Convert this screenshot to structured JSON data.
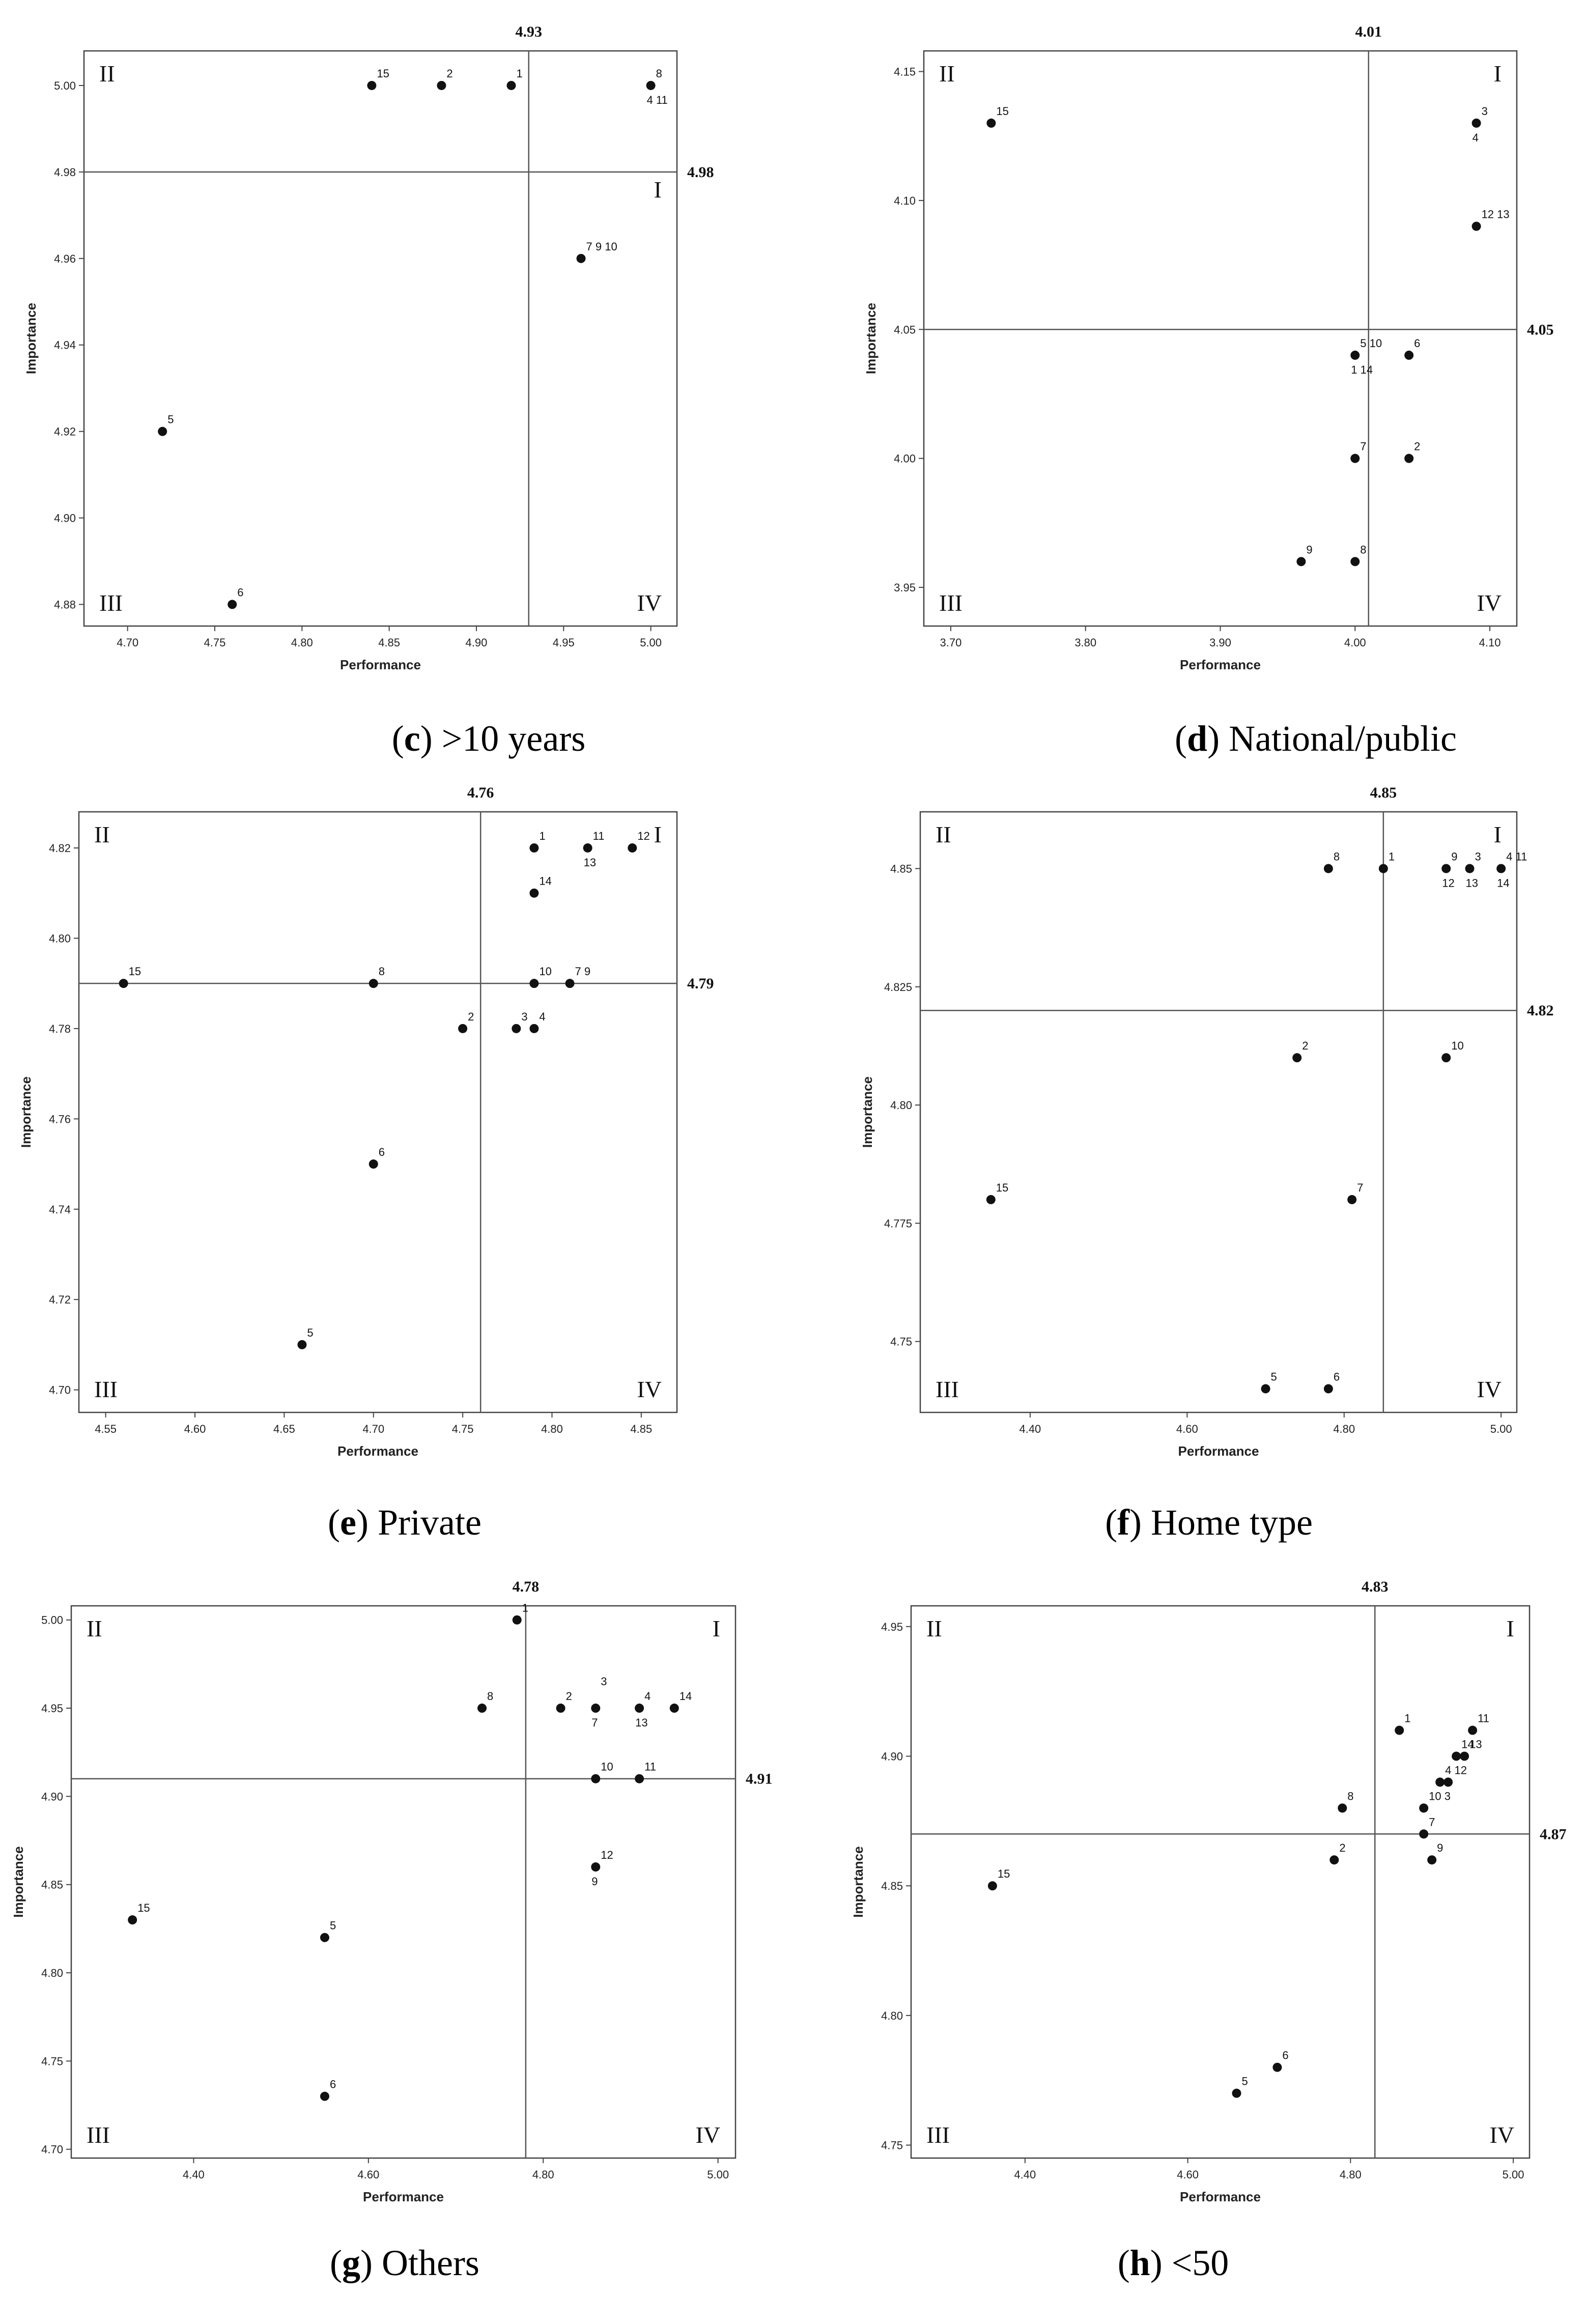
{
  "figure": {
    "quadrant_labels": [
      "I",
      "II",
      "III",
      "IV"
    ]
  },
  "chart_data": [
    {
      "type": "scatter",
      "caption_letter": "c",
      "caption_text": " >10 years",
      "xlabel": "Performance",
      "ylabel": "Importance",
      "xlim": [
        4.675,
        5.015
      ],
      "ylim": [
        4.875,
        5.008
      ],
      "xticks": [
        "4.70",
        "4.75",
        "4.80",
        "4.85",
        "4.90",
        "4.95",
        "5.00"
      ],
      "yticks": [
        "4.88",
        "4.90",
        "4.92",
        "4.94",
        "4.96",
        "4.98",
        "5.00"
      ],
      "vline": 4.93,
      "vline_label": "4.93",
      "hline": 4.98,
      "hline_label": "4.98",
      "points": [
        {
          "x": 4.84,
          "y": 5.0,
          "label": "15"
        },
        {
          "x": 4.88,
          "y": 5.0,
          "label": "2"
        },
        {
          "x": 4.92,
          "y": 5.0,
          "label": "1"
        },
        {
          "x": 5.0,
          "y": 5.0,
          "label": "8",
          "label2": "4  11"
        },
        {
          "x": 4.96,
          "y": 4.96,
          "label": "7  9 10"
        },
        {
          "x": 4.72,
          "y": 4.92,
          "label": "5"
        },
        {
          "x": 4.76,
          "y": 4.88,
          "label": "6"
        }
      ]
    },
    {
      "type": "scatter",
      "caption_letter": "d",
      "caption_text": " National/public",
      "xlabel": "Performance",
      "ylabel": "Importance",
      "xlim": [
        3.68,
        4.12
      ],
      "ylim": [
        3.935,
        4.158
      ],
      "xticks": [
        "3.70",
        "3.80",
        "3.90",
        "4.00",
        "4.10"
      ],
      "yticks": [
        "3.95",
        "4.00",
        "4.05",
        "4.10",
        "4.15"
      ],
      "vline": 4.01,
      "vline_label": "4.01",
      "hline": 4.05,
      "hline_label": "4.05",
      "points": [
        {
          "x": 3.73,
          "y": 4.13,
          "label": "15"
        },
        {
          "x": 4.09,
          "y": 4.13,
          "label": "3",
          "label2": "4"
        },
        {
          "x": 4.09,
          "y": 4.09,
          "label": "12 13"
        },
        {
          "x": 4.0,
          "y": 4.04,
          "label": "5  10",
          "label2": "1  14"
        },
        {
          "x": 4.04,
          "y": 4.04,
          "label": "6"
        },
        {
          "x": 4.0,
          "y": 4.0,
          "label": "7"
        },
        {
          "x": 4.04,
          "y": 4.0,
          "label": "2"
        },
        {
          "x": 3.96,
          "y": 3.96,
          "label": "9"
        },
        {
          "x": 4.0,
          "y": 3.96,
          "label": "8"
        }
      ]
    },
    {
      "type": "scatter",
      "caption_letter": "e",
      "caption_text": " Private",
      "xlabel": "Performance",
      "ylabel": "Importance",
      "xlim": [
        4.535,
        4.87
      ],
      "ylim": [
        4.695,
        4.828
      ],
      "xticks": [
        "4.55",
        "4.60",
        "4.65",
        "4.70",
        "4.75",
        "4.80",
        "4.85"
      ],
      "yticks": [
        "4.70",
        "4.72",
        "4.74",
        "4.76",
        "4.78",
        "4.80",
        "4.82"
      ],
      "vline": 4.76,
      "vline_label": "4.76",
      "hline": 4.79,
      "hline_label": "4.79",
      "points": [
        {
          "x": 4.79,
          "y": 4.82,
          "label": "1"
        },
        {
          "x": 4.82,
          "y": 4.82,
          "label": "11",
          "label2": "13"
        },
        {
          "x": 4.845,
          "y": 4.82,
          "label": "12"
        },
        {
          "x": 4.79,
          "y": 4.81,
          "label": "14"
        },
        {
          "x": 4.56,
          "y": 4.79,
          "label": "15"
        },
        {
          "x": 4.7,
          "y": 4.79,
          "label": "8"
        },
        {
          "x": 4.79,
          "y": 4.79,
          "label": "10"
        },
        {
          "x": 4.81,
          "y": 4.79,
          "label": "7 9"
        },
        {
          "x": 4.75,
          "y": 4.78,
          "label": "2"
        },
        {
          "x": 4.78,
          "y": 4.78,
          "label": "3"
        },
        {
          "x": 4.79,
          "y": 4.78,
          "label": "4"
        },
        {
          "x": 4.7,
          "y": 4.75,
          "label": "6"
        },
        {
          "x": 4.66,
          "y": 4.71,
          "label": "5"
        }
      ]
    },
    {
      "type": "scatter",
      "caption_letter": "f",
      "caption_text": " Home type",
      "xlabel": "Performance",
      "ylabel": "Importance",
      "xlim": [
        4.26,
        5.02
      ],
      "ylim": [
        4.735,
        4.862
      ],
      "xticks": [
        "4.40",
        "4.60",
        "4.80",
        "5.00"
      ],
      "yticks": [
        "4.75",
        "4.775",
        "4.80",
        "4.825",
        "4.85"
      ],
      "vline": 4.85,
      "vline_label": "4.85",
      "hline": 4.82,
      "hline_label": "4.82",
      "points": [
        {
          "x": 4.78,
          "y": 4.85,
          "label": "8"
        },
        {
          "x": 4.85,
          "y": 4.85,
          "label": "1"
        },
        {
          "x": 4.93,
          "y": 4.85,
          "label": "9",
          "label2": "12"
        },
        {
          "x": 4.96,
          "y": 4.85,
          "label": "3",
          "label2": "13"
        },
        {
          "x": 5.0,
          "y": 4.85,
          "label": "4  11",
          "label2": "14"
        },
        {
          "x": 4.74,
          "y": 4.81,
          "label": "2"
        },
        {
          "x": 4.93,
          "y": 4.81,
          "label": "10"
        },
        {
          "x": 4.35,
          "y": 4.78,
          "label": "15"
        },
        {
          "x": 4.81,
          "y": 4.78,
          "label": "7"
        },
        {
          "x": 4.7,
          "y": 4.74,
          "label": "5"
        },
        {
          "x": 4.78,
          "y": 4.74,
          "label": "6"
        }
      ]
    },
    {
      "type": "scatter",
      "caption_letter": "g",
      "caption_text": " Others",
      "xlabel": "Performance",
      "ylabel": "Importance",
      "xlim": [
        4.26,
        5.02
      ],
      "ylim": [
        4.695,
        5.008
      ],
      "xticks": [
        "4.40",
        "4.60",
        "4.80",
        "5.00"
      ],
      "yticks": [
        "4.70",
        "4.75",
        "4.80",
        "4.85",
        "4.90",
        "4.95",
        "5.00"
      ],
      "vline": 4.78,
      "vline_label": "4.78",
      "hline": 4.91,
      "hline_label": "4.91",
      "points": [
        {
          "x": 4.77,
          "y": 5.0,
          "label": "1"
        },
        {
          "x": 4.73,
          "y": 4.95,
          "label": "8"
        },
        {
          "x": 4.82,
          "y": 4.95,
          "label": "2"
        },
        {
          "x": 4.86,
          "y": 4.95,
          "label": "3",
          "label_above": true,
          "label2": "7"
        },
        {
          "x": 4.91,
          "y": 4.95,
          "label": "4",
          "label2": "13"
        },
        {
          "x": 4.95,
          "y": 4.95,
          "label": "14"
        },
        {
          "x": 4.86,
          "y": 4.91,
          "label": "10"
        },
        {
          "x": 4.91,
          "y": 4.91,
          "label": "11"
        },
        {
          "x": 4.86,
          "y": 4.86,
          "label": "12",
          "label2": "9"
        },
        {
          "x": 4.33,
          "y": 4.83,
          "label": "15"
        },
        {
          "x": 4.55,
          "y": 4.82,
          "label": "5"
        },
        {
          "x": 4.55,
          "y": 4.73,
          "label": "6"
        }
      ]
    },
    {
      "type": "scatter",
      "caption_letter": "h",
      "caption_text": " <50",
      "xlabel": "Performance",
      "ylabel": "Importance",
      "xlim": [
        4.26,
        5.02
      ],
      "ylim": [
        4.745,
        4.958
      ],
      "xticks": [
        "4.40",
        "4.60",
        "4.80",
        "5.00"
      ],
      "yticks": [
        "4.75",
        "4.80",
        "4.85",
        "4.90",
        "4.95"
      ],
      "vline": 4.83,
      "vline_label": "4.83",
      "hline": 4.87,
      "hline_label": "4.87",
      "points": [
        {
          "x": 4.86,
          "y": 4.91,
          "label": "1"
        },
        {
          "x": 4.95,
          "y": 4.91,
          "label": "11"
        },
        {
          "x": 4.93,
          "y": 4.9,
          "label": "14"
        },
        {
          "x": 4.94,
          "y": 4.9,
          "label": "13"
        },
        {
          "x": 4.91,
          "y": 4.89,
          "label": "4 12"
        },
        {
          "x": 4.92,
          "y": 4.89,
          "label": ""
        },
        {
          "x": 4.79,
          "y": 4.88,
          "label": "8"
        },
        {
          "x": 4.89,
          "y": 4.88,
          "label": "10  3"
        },
        {
          "x": 4.89,
          "y": 4.87,
          "label": "7"
        },
        {
          "x": 4.78,
          "y": 4.86,
          "label": "2"
        },
        {
          "x": 4.9,
          "y": 4.86,
          "label": "9"
        },
        {
          "x": 4.36,
          "y": 4.85,
          "label": "15"
        },
        {
          "x": 4.71,
          "y": 4.78,
          "label": "6"
        },
        {
          "x": 4.66,
          "y": 4.77,
          "label": "5"
        }
      ]
    }
  ]
}
